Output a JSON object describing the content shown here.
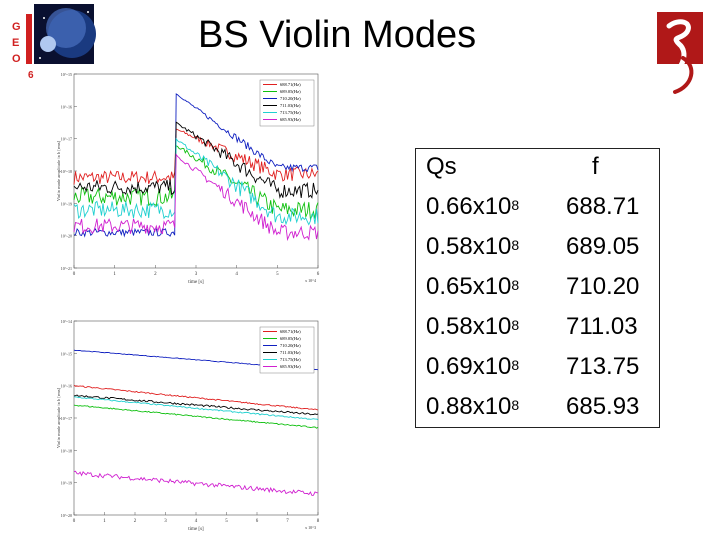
{
  "title": "BS Violin Modes",
  "geo_logo": {
    "letters": [
      "G",
      "E",
      "O",
      "6"
    ]
  },
  "table": {
    "header_q": "Qs",
    "header_f": "f",
    "rows": [
      {
        "q_mantissa": "0.66x10",
        "q_exp": "8",
        "f": "688.71"
      },
      {
        "q_mantissa": "0.58x10",
        "q_exp": "8",
        "f": "689.05"
      },
      {
        "q_mantissa": "0.65x10",
        "q_exp": "8",
        "f": "710.20"
      },
      {
        "q_mantissa": "0.58x10",
        "q_exp": "8",
        "f": "711.03"
      },
      {
        "q_mantissa": "0.69x10",
        "q_exp": "8",
        "f": "713.75"
      },
      {
        "q_mantissa": "0.88x10",
        "q_exp": "8",
        "f": "685.93"
      }
    ]
  },
  "chart_data": [
    {
      "type": "line",
      "xlabel": "time [s]",
      "ylabel": "Violin mode amplitude in h [rms]",
      "xlim": [
        0,
        6
      ],
      "ylim_exp": [
        -21,
        -15
      ],
      "yscale": "log",
      "x_ticks": [
        "0",
        "1",
        "2",
        "3",
        "4",
        "5",
        "6"
      ],
      "x_multiplier": "x 10^4",
      "y_ticks": [
        "10^-21",
        "10^-20",
        "10^-19",
        "10^-18",
        "10^-17",
        "10^-16",
        "10^-15"
      ],
      "legend_position": "top-right",
      "series": [
        {
          "name": "688.71(Hz)",
          "color": "#e02020",
          "before": -18.2,
          "jump": -16.7,
          "end": -18.1,
          "noise": 0.22
        },
        {
          "name": "689.05(Hz)",
          "color": "#10c010",
          "before": -18.8,
          "jump": -17.2,
          "end": -19.2,
          "noise": 0.28
        },
        {
          "name": "710.20(Hz)",
          "color": "#1020c0",
          "before": -19.9,
          "jump": -15.6,
          "end": -17.9,
          "noise": 0.12
        },
        {
          "name": "711.03(Hz)",
          "color": "#000000",
          "before": -18.5,
          "jump": -16.5,
          "end": -18.6,
          "noise": 0.24
        },
        {
          "name": "713.75(Hz)",
          "color": "#20d0d0",
          "before": -19.2,
          "jump": -17.0,
          "end": -19.4,
          "noise": 0.26
        },
        {
          "name": "685.93(Hz)",
          "color": "#d020d0",
          "before": -19.7,
          "jump": -17.5,
          "end": -19.9,
          "noise": 0.24
        }
      ],
      "jump_time": 2.5
    },
    {
      "type": "line",
      "xlabel": "time [s]",
      "ylabel": "Violin mode amplitude in h [rms]",
      "xlim": [
        0,
        8
      ],
      "ylim_exp": [
        -20,
        -14
      ],
      "yscale": "log",
      "x_ticks": [
        "0",
        "1",
        "2",
        "3",
        "4",
        "5",
        "6",
        "7",
        "8"
      ],
      "x_multiplier": "x 10^3",
      "y_ticks": [
        "10^-20",
        "10^-19",
        "10^-18",
        "10^-17",
        "10^-16",
        "10^-15",
        "10^-14"
      ],
      "legend_position": "top-right",
      "series": [
        {
          "name": "688.71(Hz)",
          "color": "#e02020",
          "start": -16.0,
          "end": -16.75,
          "noise": 0.02
        },
        {
          "name": "689.05(Hz)",
          "color": "#10c010",
          "start": -16.6,
          "end": -17.3,
          "noise": 0.02
        },
        {
          "name": "710.20(Hz)",
          "color": "#1020c0",
          "start": -14.9,
          "end": -15.5,
          "noise": 0.01
        },
        {
          "name": "711.03(Hz)",
          "color": "#000000",
          "start": -16.3,
          "end": -16.9,
          "noise": 0.03
        },
        {
          "name": "713.75(Hz)",
          "color": "#20d0d0",
          "start": -16.35,
          "end": -17.05,
          "noise": 0.02
        },
        {
          "name": "685.93(Hz)",
          "color": "#d020d0",
          "start": -18.7,
          "end": -19.35,
          "noise": 0.07
        }
      ]
    }
  ]
}
